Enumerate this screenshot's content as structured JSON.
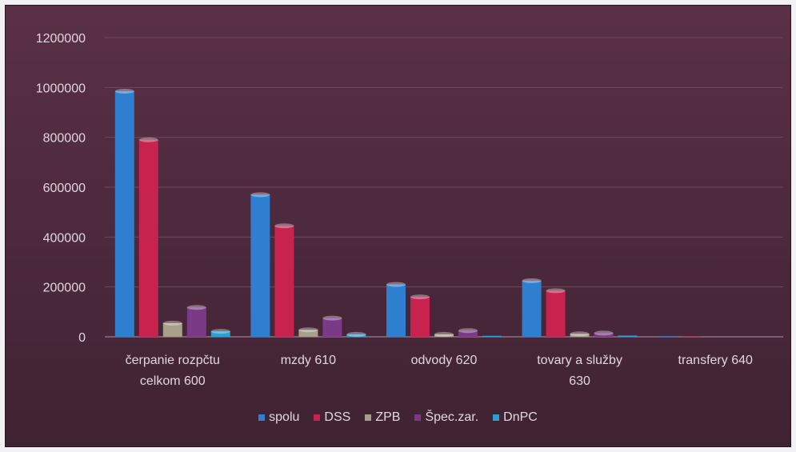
{
  "chart_data": {
    "type": "bar",
    "title": "",
    "xlabel": "",
    "ylabel": "",
    "ylim": [
      0,
      1200000
    ],
    "yticks": [
      0,
      200000,
      400000,
      600000,
      800000,
      1000000,
      1200000
    ],
    "ytick_labels": [
      "0",
      "200000",
      "400000",
      "600000",
      "800000",
      "1000000",
      "1200000"
    ],
    "grid": true,
    "legend_position": "bottom",
    "categories": [
      [
        "čerpanie rozpčtu",
        "celkom 600"
      ],
      [
        "mzdy 610"
      ],
      [
        "odvody 620"
      ],
      [
        "tovary a služby",
        "630"
      ],
      [
        "transfery 640"
      ]
    ],
    "series": [
      {
        "name": "spolu",
        "color": "#2f7fd0",
        "values": [
          985000,
          570000,
          210000,
          225000,
          2000
        ]
      },
      {
        "name": "DSS",
        "color": "#c8224e",
        "values": [
          790000,
          445000,
          160000,
          185000,
          1000
        ]
      },
      {
        "name": "ZPB",
        "color": "#a6a08a",
        "values": [
          55000,
          28000,
          10000,
          12000,
          0
        ]
      },
      {
        "name": "Špec.zar.",
        "color": "#7a3a86",
        "values": [
          118000,
          75000,
          25000,
          15000,
          0
        ]
      },
      {
        "name": "DnPC",
        "color": "#2a9fd0",
        "values": [
          22000,
          10000,
          4000,
          5000,
          0
        ]
      }
    ]
  }
}
